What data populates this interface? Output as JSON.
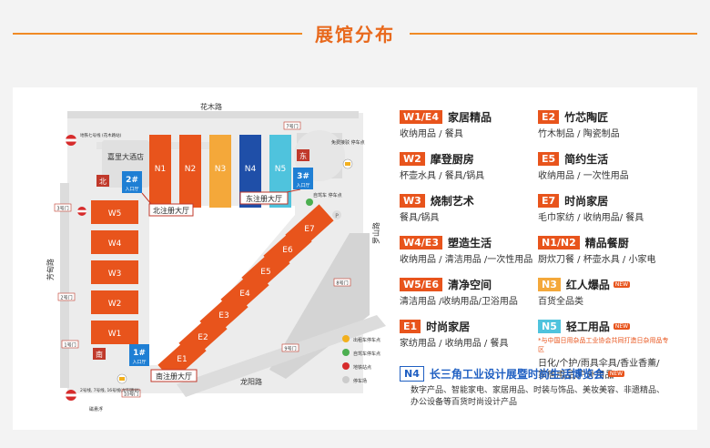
{
  "page": {
    "title": "展馆分布"
  },
  "colors": {
    "orange": "#e8541c",
    "yellow": "#f4a83a",
    "blue": "#1f4fa8",
    "cyan": "#4fc3dd",
    "gray": "#dcdcdc",
    "darkgray": "#bdbdbd"
  },
  "map": {
    "roads": {
      "north": "花木路",
      "south": "龙阳路",
      "west": "芳甸路",
      "east": "罗山路"
    },
    "halls": {
      "N1": "N1",
      "N2": "N2",
      "N3": "N3",
      "N4": "N4",
      "N5": "N5",
      "W1": "W1",
      "W2": "W2",
      "W3": "W3",
      "W4": "W4",
      "W5": "W5",
      "E1": "E1",
      "E2": "E2",
      "E3": "E3",
      "E4": "E4",
      "E5": "E5",
      "E6": "E6",
      "E7": "E7"
    },
    "hotel": "嘉里大酒店",
    "halls_reg": {
      "north": "北注册大厅",
      "east": "东注册大厅",
      "south": "南注册大厅"
    },
    "entrances": {
      "e1": "1#",
      "e2": "2#",
      "e3": "3#",
      "label": "入口厅"
    },
    "direction_marks": {
      "north": "北",
      "east": "东",
      "south": "南"
    },
    "gates": {
      "g1": "1号门",
      "g2": "2号门",
      "g3": "3号门",
      "g7": "7号门",
      "g8": "8号门",
      "g9": "9号门",
      "g10": "10号门"
    },
    "metro": {
      "line7": "地铁七号线\n(花木路站)",
      "line2": "2号线, 7号线,\n16号线(龙阳路站)",
      "maglev": "磁悬浮"
    },
    "parking_labels": {
      "free_taxi": "免费接驳\n停车点",
      "bike": "自驾车\n停车点"
    },
    "map_legend": [
      "出租车停车点",
      "自驾车停车点",
      "地铁站点",
      "停车场"
    ]
  },
  "legend": [
    {
      "code": "W1/E4",
      "name": "家居精品",
      "desc": "收纳用品 / 餐具",
      "color": "orange"
    },
    {
      "code": "E2",
      "name": "竹芯陶匠",
      "desc": "竹木制品 / 陶瓷制品",
      "color": "orange"
    },
    {
      "code": "W2",
      "name": "摩登厨房",
      "desc": "杯壶水具 / 餐具/锅具",
      "color": "orange"
    },
    {
      "code": "E5",
      "name": "简约生活",
      "desc": "收纳用品 / 一次性用品",
      "color": "orange"
    },
    {
      "code": "W3",
      "name": "烧制艺术",
      "desc": "餐具/锅具",
      "color": "orange"
    },
    {
      "code": "E7",
      "name": "时尚家居",
      "desc": "毛巾家纺 / 收纳用品/ 餐具",
      "color": "orange"
    },
    {
      "code": "W4/E3",
      "name": "塑造生活",
      "desc": "收纳用品 / 清洁用品 /一次性用品",
      "color": "orange"
    },
    {
      "code": "N1/N2",
      "name": "精品餐厨",
      "desc": "厨炊刀餐 / 杯壶水具 / 小家电",
      "color": "orange"
    },
    {
      "code": "W5/E6",
      "name": "清净空间",
      "desc": "清洁用品 /收纳用品/卫浴用品",
      "color": "orange"
    },
    {
      "code": "N3",
      "name": "红人爆品",
      "desc": "百货全品类",
      "color": "yellow",
      "new": "NEW"
    },
    {
      "code": "E1",
      "name": "时尚家居",
      "desc": "家纺用品 / 收纳用品 / 餐具",
      "color": "orange"
    },
    {
      "code": "N5",
      "name": "轻工用品",
      "desc": "日化/个护/雨具伞具/香业香薰/\n家居用品/户外用品",
      "note": "*与中国日用杂品工业协会共同打造日杂用品专区",
      "color": "cyan",
      "new": "NEW"
    },
    {
      "code": "N4",
      "name": "长三角工业设计展暨时尚生活博览会",
      "desc": "数字产品、智能家电、家居用品、时装与饰品、美妆美容、非遗精品、\n办公设备等百货时尚设计产品",
      "color": "outline",
      "new": "NEW"
    }
  ]
}
